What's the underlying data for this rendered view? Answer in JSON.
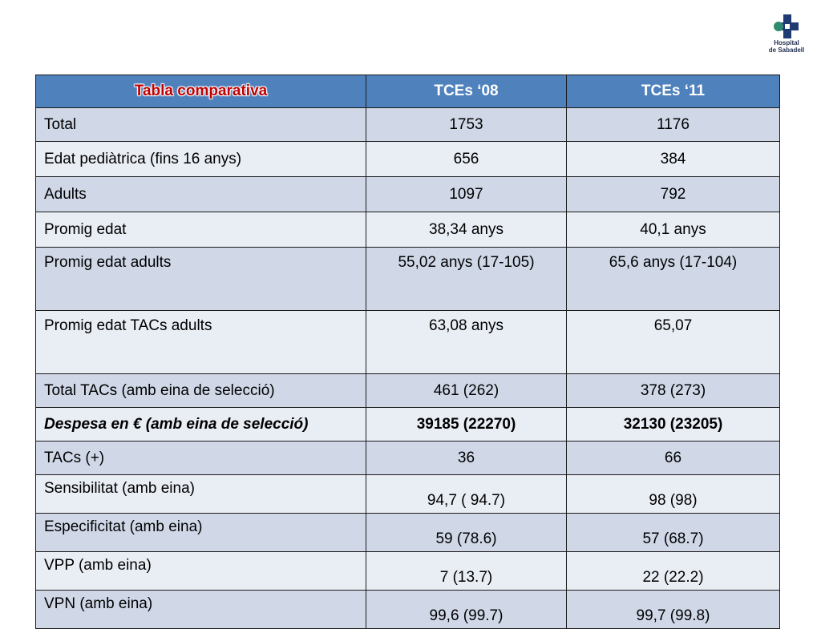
{
  "logo": {
    "line1": "Hospital",
    "line2": "de Sabadell",
    "colors": {
      "cross": "#1f3b73",
      "circle": "#2e8b6e"
    }
  },
  "table": {
    "headers": [
      "Tabla comparativa",
      "TCEs ‘08",
      "TCEs ‘11"
    ],
    "rows": [
      {
        "label": "Total",
        "v08": "1753",
        "v11": "1176"
      },
      {
        "label": "Edat pediàtrica (fins 16 anys)",
        "v08": "656",
        "v11": "384"
      },
      {
        "label": "Adults",
        "v08": "1097",
        "v11": "792"
      },
      {
        "label": "Promig edat",
        "v08": "38,34 anys",
        "v11": "40,1 anys"
      },
      {
        "label": "Promig edat adults",
        "v08": "55,02 anys  (17-105)",
        "v11": "65,6 anys  (17-104)"
      },
      {
        "label": "Promig edat TACs adults",
        "v08": "63,08 anys",
        "v11": "65,07"
      },
      {
        "label": "Total TACs (amb eina de selecció)",
        "v08": "461  (262)",
        "v11": "378  (273)"
      },
      {
        "label": "Despesa en € (amb eina de selecció)",
        "v08": "39185  (22270)",
        "v11": "32130  (23205)"
      },
      {
        "label": "TACs (+)",
        "v08": "36",
        "v11": "66"
      },
      {
        "label": "Sensibilitat  (amb eina)",
        "v08": "94,7  ( 94.7)",
        "v11": "98  (98)"
      },
      {
        "label": "Especificitat  (amb eina)",
        "v08": "59  (78.6)",
        "v11": "57  (68.7)"
      },
      {
        "label": "VPP  (amb eina)",
        "v08": "7  (13.7)",
        "v11": "22  (22.2)"
      },
      {
        "label": "VPN  (amb eina)",
        "v08": "99,6  (99.7)",
        "v11": "99,7  (99.8)"
      }
    ],
    "colors": {
      "header": "#4f81bd",
      "title_text": "#c00000",
      "row_dark": "#d0d8e8",
      "row_light": "#e9edf4"
    }
  }
}
